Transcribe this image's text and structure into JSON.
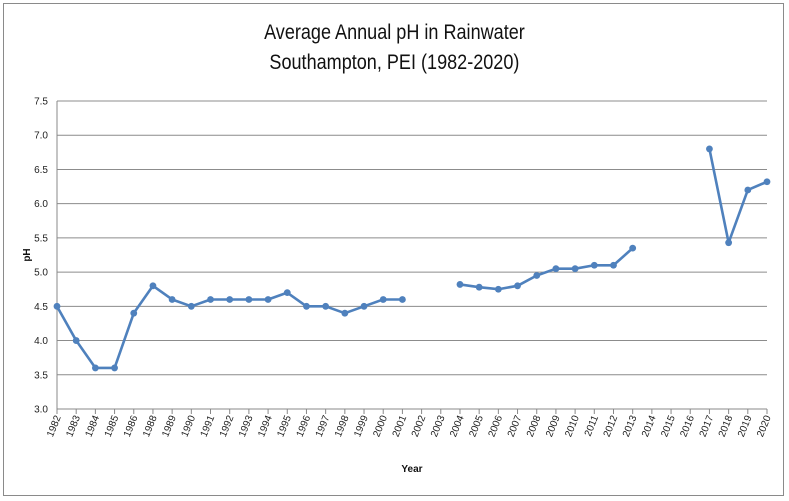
{
  "chart_data": {
    "type": "line",
    "title": "Average Annual pH in Rainwater",
    "subtitle": "Southampton, PEI  (1982-2020)",
    "xlabel": "Year",
    "ylabel": "pH",
    "ylim": [
      3.0,
      7.5
    ],
    "ytick_labels": [
      "3.0",
      "3.5",
      "4.0",
      "4.5",
      "5.0",
      "5.5",
      "6.0",
      "6.5",
      "7.0",
      "7.5"
    ],
    "grid": true,
    "legend": "none",
    "series_color": "#4f81bd",
    "categories": [
      "1982",
      "1983",
      "1984",
      "1985",
      "1986",
      "1988",
      "1989",
      "1990",
      "1991",
      "1992",
      "1993",
      "1994",
      "1995",
      "1996",
      "1997",
      "1998",
      "1999",
      "2000",
      "2001",
      "2002",
      "2003",
      "2004",
      "2005",
      "2006",
      "2007",
      "2008",
      "2009",
      "2010",
      "2011",
      "2012",
      "2013",
      "2014",
      "2015",
      "2016",
      "2017",
      "2018",
      "2019",
      "2020"
    ],
    "values": [
      4.5,
      4.0,
      3.6,
      3.6,
      4.4,
      4.8,
      4.6,
      4.5,
      4.6,
      4.6,
      4.6,
      4.6,
      4.7,
      4.5,
      4.5,
      4.4,
      4.5,
      4.6,
      4.6,
      null,
      null,
      4.82,
      4.78,
      4.75,
      4.8,
      4.95,
      5.05,
      5.05,
      5.1,
      5.1,
      5.35,
      null,
      null,
      null,
      6.8,
      5.43,
      6.2,
      6.32
    ]
  }
}
